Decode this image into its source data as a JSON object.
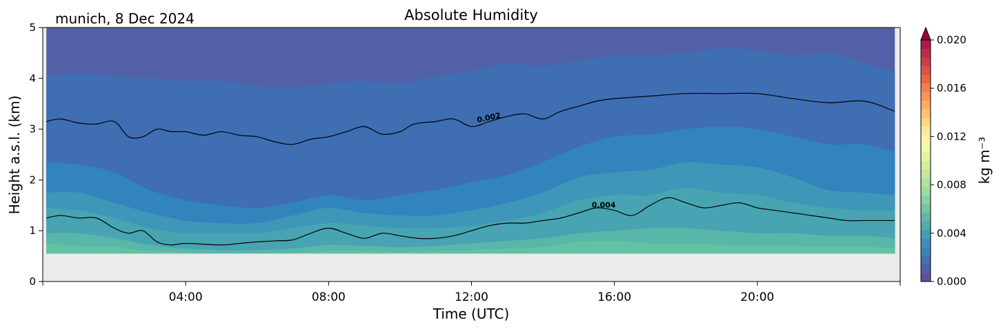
{
  "chart_data": {
    "type": "heatmap",
    "title": "Absolute Humidity",
    "subtitle": "munich, 8 Dec 2024",
    "xlabel": "Time (UTC)",
    "ylabel": "Height a.s.l. (km)",
    "x_range_hours": [
      0,
      24
    ],
    "ylim": [
      0,
      5
    ],
    "x_tick_labels": [
      "04:00",
      "08:00",
      "12:00",
      "16:00",
      "20:00"
    ],
    "x_tick_hours": [
      4,
      8,
      12,
      16,
      20
    ],
    "y_ticks": [
      0,
      1,
      2,
      3,
      4,
      5
    ],
    "data_bottom_km": 0.55,
    "data_time_range_hours": [
      0.1,
      23.85
    ],
    "colorbar": {
      "label": "kg m⁻³",
      "range": [
        0.0,
        0.02
      ],
      "extend": "max",
      "tick_values": [
        0.0,
        0.004,
        0.008,
        0.012,
        0.016,
        0.02
      ],
      "tick_labels": [
        "0.000",
        "0.004",
        "0.008",
        "0.012",
        "0.016",
        "0.020"
      ],
      "colormap": "Spectral_r",
      "colors": [
        "#5e4fa2",
        "#4f60aa",
        "#4171b2",
        "#3d82b7",
        "#3b91b8",
        "#449eb5",
        "#52acad",
        "#62b8a6",
        "#75c4a4",
        "#89cfa4",
        "#9ed8a4",
        "#b2e0a2",
        "#c5e89e",
        "#d6ef9b",
        "#e6f598",
        "#f3faad",
        "#fbf4a8",
        "#fee89a",
        "#fed683",
        "#fdc270",
        "#fdae61",
        "#f99656",
        "#f47e4c",
        "#ea6746",
        "#dc5146",
        "#ce3d4a",
        "#be2a4b",
        "#a91b48",
        "#9e0142"
      ]
    },
    "contour_lines": [
      {
        "label": "0.002",
        "label_hour": 12.5,
        "points_hours_km": [
          [
            0,
            3.15
          ],
          [
            0.5,
            3.2
          ],
          [
            1,
            3.12
          ],
          [
            1.5,
            3.1
          ],
          [
            2,
            3.15
          ],
          [
            2.4,
            2.85
          ],
          [
            2.8,
            2.85
          ],
          [
            3.2,
            3.0
          ],
          [
            3.6,
            2.95
          ],
          [
            4,
            2.95
          ],
          [
            4.5,
            2.88
          ],
          [
            5,
            2.95
          ],
          [
            5.5,
            2.88
          ],
          [
            6,
            2.85
          ],
          [
            6.5,
            2.75
          ],
          [
            7,
            2.7
          ],
          [
            7.5,
            2.8
          ],
          [
            8,
            2.85
          ],
          [
            8.5,
            2.95
          ],
          [
            9,
            3.05
          ],
          [
            9.5,
            2.9
          ],
          [
            10,
            2.95
          ],
          [
            10.4,
            3.1
          ],
          [
            11,
            3.15
          ],
          [
            11.5,
            3.2
          ],
          [
            12,
            3.05
          ],
          [
            12.5,
            3.15
          ],
          [
            13,
            3.25
          ],
          [
            13.5,
            3.3
          ],
          [
            14,
            3.2
          ],
          [
            14.5,
            3.35
          ],
          [
            15,
            3.45
          ],
          [
            15.5,
            3.55
          ],
          [
            16,
            3.6
          ],
          [
            17,
            3.65
          ],
          [
            18,
            3.7
          ],
          [
            19,
            3.7
          ],
          [
            20,
            3.7
          ],
          [
            21,
            3.6
          ],
          [
            22,
            3.52
          ],
          [
            23,
            3.55
          ],
          [
            23.9,
            3.35
          ]
        ]
      },
      {
        "label": "0.004",
        "label_hour": 15.7,
        "points_hours_km": [
          [
            0,
            1.25
          ],
          [
            0.5,
            1.3
          ],
          [
            1,
            1.25
          ],
          [
            1.5,
            1.25
          ],
          [
            2,
            1.05
          ],
          [
            2.4,
            0.95
          ],
          [
            2.8,
            1.0
          ],
          [
            3.2,
            0.78
          ],
          [
            3.6,
            0.72
          ],
          [
            4,
            0.75
          ],
          [
            5,
            0.72
          ],
          [
            5.5,
            0.75
          ],
          [
            6,
            0.78
          ],
          [
            6.5,
            0.8
          ],
          [
            7,
            0.82
          ],
          [
            7.5,
            0.95
          ],
          [
            8,
            1.05
          ],
          [
            8.5,
            0.95
          ],
          [
            9,
            0.85
          ],
          [
            9.5,
            0.95
          ],
          [
            10,
            0.9
          ],
          [
            10.5,
            0.85
          ],
          [
            11,
            0.85
          ],
          [
            11.5,
            0.9
          ],
          [
            12,
            1.0
          ],
          [
            12.5,
            1.1
          ],
          [
            13,
            1.15
          ],
          [
            13.5,
            1.15
          ],
          [
            14,
            1.2
          ],
          [
            14.5,
            1.25
          ],
          [
            15,
            1.35
          ],
          [
            15.5,
            1.45
          ],
          [
            16,
            1.4
          ],
          [
            16.5,
            1.3
          ],
          [
            17,
            1.5
          ],
          [
            17.5,
            1.65
          ],
          [
            18,
            1.55
          ],
          [
            18.5,
            1.45
          ],
          [
            19,
            1.5
          ],
          [
            19.5,
            1.55
          ],
          [
            20,
            1.45
          ],
          [
            20.5,
            1.4
          ],
          [
            21,
            1.35
          ],
          [
            21.5,
            1.3
          ],
          [
            22,
            1.25
          ],
          [
            22.5,
            1.2
          ],
          [
            23,
            1.2
          ],
          [
            23.9,
            1.2
          ]
        ]
      }
    ],
    "filled_band_boundaries": [
      {
        "value": 0.001,
        "points_hours_km": [
          [
            0,
            4.05
          ],
          [
            1,
            4.1
          ],
          [
            2,
            4.05
          ],
          [
            3,
            4.0
          ],
          [
            4,
            3.95
          ],
          [
            5,
            3.95
          ],
          [
            6,
            3.85
          ],
          [
            7,
            3.8
          ],
          [
            8,
            3.9
          ],
          [
            9,
            3.95
          ],
          [
            10,
            3.9
          ],
          [
            11,
            4.05
          ],
          [
            12,
            4.15
          ],
          [
            13,
            4.3
          ],
          [
            14,
            4.25
          ],
          [
            15,
            4.35
          ],
          [
            16,
            4.45
          ],
          [
            17,
            4.45
          ],
          [
            18,
            4.5
          ],
          [
            19,
            4.6
          ],
          [
            20,
            4.55
          ],
          [
            21,
            4.45
          ],
          [
            22,
            4.5
          ],
          [
            23,
            4.3
          ],
          [
            23.9,
            4.15
          ]
        ]
      },
      {
        "value": 0.0025,
        "points_hours_km": [
          [
            0,
            2.35
          ],
          [
            1,
            2.3
          ],
          [
            2,
            2.15
          ],
          [
            3,
            1.8
          ],
          [
            4,
            1.6
          ],
          [
            5,
            1.5
          ],
          [
            6,
            1.45
          ],
          [
            7,
            1.55
          ],
          [
            8,
            1.7
          ],
          [
            9,
            1.6
          ],
          [
            10,
            1.7
          ],
          [
            11,
            1.8
          ],
          [
            12,
            1.95
          ],
          [
            13,
            2.1
          ],
          [
            14,
            2.35
          ],
          [
            15,
            2.65
          ],
          [
            16,
            2.85
          ],
          [
            17,
            2.9
          ],
          [
            18,
            3.0
          ],
          [
            19,
            3.05
          ],
          [
            20,
            3.0
          ],
          [
            21,
            2.85
          ],
          [
            22,
            2.7
          ],
          [
            23,
            2.7
          ],
          [
            23.9,
            2.55
          ]
        ]
      },
      {
        "value": 0.003,
        "points_hours_km": [
          [
            0,
            1.75
          ],
          [
            1,
            1.75
          ],
          [
            2,
            1.55
          ],
          [
            3,
            1.35
          ],
          [
            4,
            1.2
          ],
          [
            5,
            1.15
          ],
          [
            6,
            1.15
          ],
          [
            7,
            1.3
          ],
          [
            8,
            1.45
          ],
          [
            9,
            1.35
          ],
          [
            10,
            1.3
          ],
          [
            11,
            1.3
          ],
          [
            12,
            1.4
          ],
          [
            13,
            1.55
          ],
          [
            14,
            1.75
          ],
          [
            15,
            2.05
          ],
          [
            16,
            2.15
          ],
          [
            17,
            2.2
          ],
          [
            18,
            2.35
          ],
          [
            19,
            2.3
          ],
          [
            20,
            2.25
          ],
          [
            21,
            2.05
          ],
          [
            22,
            1.8
          ],
          [
            23,
            1.75
          ],
          [
            23.9,
            1.7
          ]
        ]
      },
      {
        "value": 0.0035,
        "points_hours_km": [
          [
            0,
            1.45
          ],
          [
            1,
            1.4
          ],
          [
            2,
            1.25
          ],
          [
            3,
            1.05
          ],
          [
            4,
            0.95
          ],
          [
            5,
            0.95
          ],
          [
            6,
            0.95
          ],
          [
            7,
            1.05
          ],
          [
            8,
            1.15
          ],
          [
            9,
            1.1
          ],
          [
            10,
            1.05
          ],
          [
            11,
            1.05
          ],
          [
            12,
            1.1
          ],
          [
            13,
            1.2
          ],
          [
            14,
            1.35
          ],
          [
            15,
            1.6
          ],
          [
            16,
            1.7
          ],
          [
            17,
            1.7
          ],
          [
            18,
            1.85
          ],
          [
            19,
            1.75
          ],
          [
            20,
            1.7
          ],
          [
            21,
            1.55
          ],
          [
            22,
            1.45
          ],
          [
            23,
            1.4
          ],
          [
            23.9,
            1.4
          ]
        ]
      },
      {
        "value": 0.0045,
        "points_hours_km": [
          [
            0,
            0.95
          ],
          [
            1,
            0.95
          ],
          [
            2,
            0.85
          ],
          [
            3,
            0.72
          ],
          [
            4,
            0.65
          ],
          [
            5,
            0.62
          ],
          [
            6,
            0.62
          ],
          [
            7,
            0.65
          ],
          [
            8,
            0.72
          ],
          [
            9,
            0.7
          ],
          [
            10,
            0.68
          ],
          [
            11,
            0.7
          ],
          [
            12,
            0.75
          ],
          [
            13,
            0.8
          ],
          [
            14,
            0.85
          ],
          [
            15,
            0.95
          ],
          [
            16,
            1.0
          ],
          [
            17,
            1.05
          ],
          [
            18,
            1.05
          ],
          [
            19,
            1.0
          ],
          [
            20,
            0.95
          ],
          [
            21,
            0.95
          ],
          [
            22,
            0.9
          ],
          [
            23,
            0.9
          ],
          [
            23.9,
            0.85
          ]
        ]
      },
      {
        "value": 0.005,
        "points_hours_km": [
          [
            0,
            0.75
          ],
          [
            1,
            0.7
          ],
          [
            2,
            0.68
          ],
          [
            3,
            0.6
          ],
          [
            4,
            0.58
          ],
          [
            5,
            0.56
          ],
          [
            6,
            0.56
          ],
          [
            7,
            0.57
          ],
          [
            8,
            0.6
          ],
          [
            9,
            0.6
          ],
          [
            10,
            0.58
          ],
          [
            11,
            0.6
          ],
          [
            12,
            0.62
          ],
          [
            13,
            0.65
          ],
          [
            14,
            0.68
          ],
          [
            15,
            0.78
          ],
          [
            16,
            0.8
          ],
          [
            17,
            0.75
          ],
          [
            18,
            0.75
          ],
          [
            19,
            0.72
          ],
          [
            20,
            0.7
          ],
          [
            21,
            0.7
          ],
          [
            22,
            0.68
          ],
          [
            23,
            0.68
          ],
          [
            23.9,
            0.66
          ]
        ]
      }
    ],
    "band_fill_colors": [
      "#5360a8",
      "#3f6eb3",
      "#3284bd",
      "#3e96b8",
      "#48a4b2",
      "#58b7a8",
      "#62c2a3",
      "#7bcba2"
    ],
    "no_data_color": "#ebebeb",
    "grid": false
  }
}
